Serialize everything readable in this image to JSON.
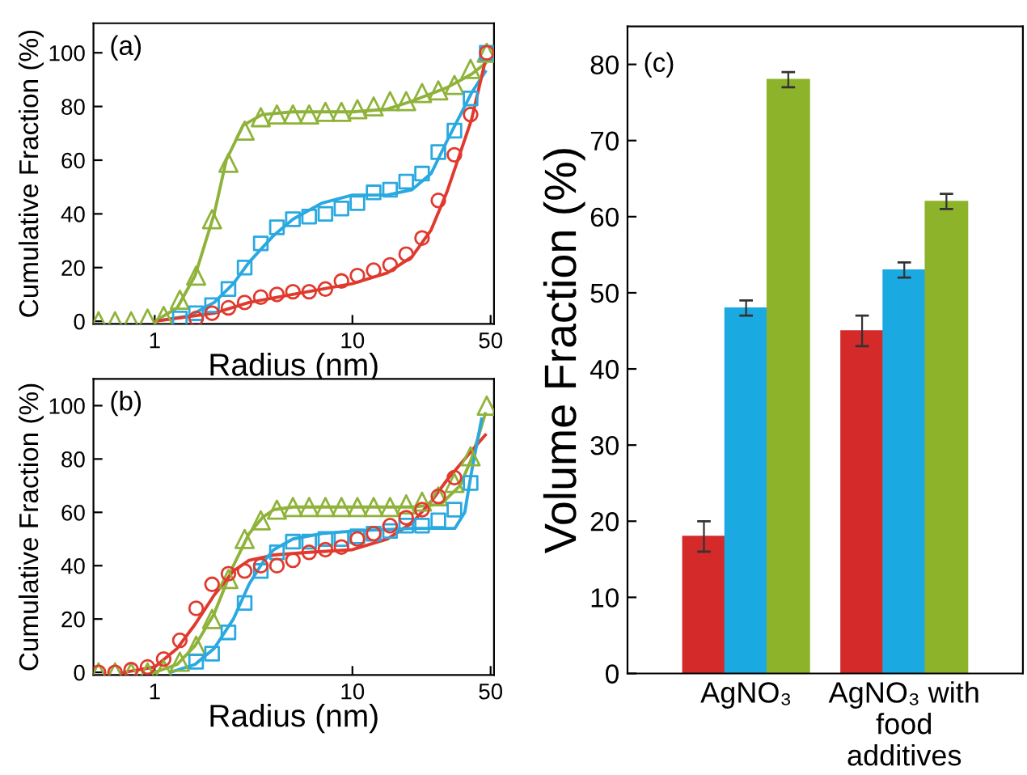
{
  "chart_data": [
    {
      "type": "scatter",
      "xlabel": "Radius (nm)",
      "ylabel": "Cumulative Fraction (%)",
      "annotations": [
        "(a)"
      ],
      "log": "x",
      "xlim": [
        0.49,
        52
      ],
      "xticks": [
        1,
        10,
        50
      ],
      "ylim": [
        -1,
        111
      ],
      "yticks": [
        0,
        20,
        40,
        60,
        80,
        100
      ],
      "grid": false,
      "series": [
        {
          "type": "scatter",
          "marker": "triangle",
          "color": "#8fb33a",
          "x": [
            0.52,
            0.63,
            0.76,
            0.92,
            1.11,
            1.34,
            1.62,
            1.95,
            2.36,
            2.85,
            3.44,
            4.15,
            5.0,
            6.04,
            7.3,
            8.8,
            10.6,
            12.8,
            15.5,
            18.7,
            22.5,
            27.2,
            32.8,
            39.6,
            47.8
          ],
          "values": [
            0,
            0,
            0,
            1,
            2,
            8,
            17,
            38,
            59,
            71,
            76,
            77,
            77,
            77,
            78,
            78,
            79,
            80,
            82,
            82,
            85,
            86,
            88,
            94,
            100
          ]
        },
        {
          "type": "scatter",
          "marker": "square",
          "color": "#2aa9e0",
          "x": [
            1.34,
            1.62,
            1.95,
            2.36,
            2.85,
            3.44,
            4.15,
            5.0,
            6.04,
            7.3,
            8.8,
            10.6,
            12.8,
            15.5,
            18.7,
            22.5,
            27.2,
            32.8,
            39.6,
            47.8
          ],
          "values": [
            1,
            3,
            6,
            12,
            20,
            29,
            35,
            38,
            39,
            40,
            42,
            44,
            48,
            49,
            52,
            55,
            63,
            71,
            83,
            100
          ]
        },
        {
          "type": "scatter",
          "marker": "circle",
          "color": "#e03a2e",
          "x": [
            1.62,
            1.95,
            2.36,
            2.85,
            3.44,
            4.15,
            5.0,
            6.04,
            7.3,
            8.8,
            10.6,
            12.8,
            15.5,
            18.7,
            22.5,
            27.2,
            32.8,
            39.6,
            47.8
          ],
          "values": [
            1,
            3,
            5,
            7,
            9,
            10,
            11,
            11,
            12,
            15,
            17,
            19,
            21,
            25,
            31,
            45,
            62,
            77,
            100
          ]
        },
        {
          "type": "line",
          "marker": "none",
          "color": "#8fb33a",
          "x": [
            1.0,
            1.3,
            1.6,
            2.0,
            2.3,
            2.8,
            3.5,
            5,
            10,
            15,
            20,
            30,
            40,
            47
          ],
          "values": [
            0,
            5,
            17,
            40,
            60,
            73,
            77,
            78,
            78,
            79,
            82,
            87,
            92,
            96
          ]
        },
        {
          "type": "line",
          "marker": "none",
          "color": "#2aa9e0",
          "x": [
            1.0,
            1.5,
            2,
            2.5,
            3,
            4,
            5,
            7,
            10,
            15,
            20,
            25,
            30,
            40,
            47
          ],
          "values": [
            0,
            2,
            7,
            14,
            22,
            32,
            38,
            44,
            47,
            47,
            49,
            55,
            67,
            85,
            93
          ]
        },
        {
          "type": "line",
          "marker": "none",
          "color": "#e03a2e",
          "x": [
            1.0,
            2,
            3,
            5,
            10,
            15,
            20,
            25,
            30,
            40,
            47
          ],
          "values": [
            0,
            3,
            7,
            10,
            14,
            18,
            24,
            34,
            48,
            75,
            97
          ]
        }
      ]
    },
    {
      "type": "scatter",
      "xlabel": "Radius (nm)",
      "ylabel": "Cumulative Fraction (%)",
      "annotations": [
        "(b)"
      ],
      "log": "x",
      "xlim": [
        0.49,
        52
      ],
      "xticks": [
        1,
        10,
        50
      ],
      "ylim": [
        -1,
        110
      ],
      "yticks": [
        0,
        20,
        40,
        60,
        80,
        100
      ],
      "grid": false,
      "series": [
        {
          "type": "scatter",
          "marker": "triangle",
          "color": "#8fb33a",
          "x": [
            0.52,
            0.63,
            0.76,
            0.92,
            1.11,
            1.34,
            1.62,
            1.95,
            2.36,
            2.85,
            3.44,
            4.15,
            5.0,
            6.04,
            7.3,
            8.8,
            10.6,
            12.8,
            15.5,
            18.7,
            22.5,
            27.2,
            32.8,
            39.6,
            47.8
          ],
          "values": [
            0,
            0,
            0,
            0,
            1,
            4,
            10,
            20,
            35,
            50,
            57,
            61,
            62,
            62,
            62,
            62,
            62,
            62,
            62,
            63,
            64,
            66,
            71,
            81,
            100
          ]
        },
        {
          "type": "scatter",
          "marker": "square",
          "color": "#2aa9e0",
          "x": [
            1.62,
            1.95,
            2.36,
            2.85,
            3.44,
            4.15,
            5.0,
            6.04,
            7.3,
            8.8,
            10.6,
            12.8,
            15.5,
            18.7,
            22.5,
            27.2,
            32.8,
            39.6
          ],
          "values": [
            4,
            7,
            15,
            26,
            38,
            45,
            49,
            49,
            50,
            50,
            51,
            52,
            53,
            55,
            55,
            57,
            61,
            71
          ]
        },
        {
          "type": "scatter",
          "marker": "circle",
          "color": "#e03a2e",
          "x": [
            0.52,
            0.63,
            0.76,
            0.92,
            1.11,
            1.34,
            1.62,
            1.95,
            2.36,
            2.85,
            3.44,
            4.15,
            5.0,
            6.04,
            7.3,
            8.8,
            10.6,
            12.8,
            15.5,
            18.7,
            22.5,
            27.2,
            32.8
          ],
          "values": [
            0,
            0,
            1,
            2,
            5,
            12,
            24,
            33,
            37,
            38,
            40,
            40,
            42,
            45,
            46,
            47,
            50,
            52,
            55,
            58,
            61,
            66,
            73
          ]
        },
        {
          "type": "line",
          "marker": "none",
          "color": "#8fb33a",
          "x": [
            1.0,
            1.3,
            1.6,
            2,
            2.5,
            3,
            3.5,
            4,
            5,
            10,
            20,
            28,
            35,
            40,
            47
          ],
          "values": [
            0,
            3,
            10,
            22,
            40,
            52,
            58,
            61,
            62,
            62,
            62,
            63,
            70,
            80,
            97
          ]
        },
        {
          "type": "line",
          "marker": "none",
          "color": "#e03a2e",
          "x": [
            0.7,
            1,
            1.3,
            1.6,
            2,
            2.5,
            3,
            4,
            6,
            10,
            15,
            20,
            25,
            30,
            40,
            47
          ],
          "values": [
            0,
            2,
            9,
            18,
            29,
            38,
            42,
            44,
            45,
            46,
            50,
            56,
            64,
            72,
            83,
            89
          ]
        },
        {
          "type": "line",
          "marker": "none",
          "color": "#2aa9e0",
          "x": [
            1.2,
            1.6,
            2,
            2.5,
            3,
            3.5,
            4,
            5,
            7,
            10,
            20,
            33,
            37,
            40,
            45
          ],
          "values": [
            0,
            3,
            9,
            20,
            33,
            41,
            46,
            50,
            52,
            53,
            54,
            54,
            60,
            75,
            95
          ]
        }
      ]
    },
    {
      "type": "bar",
      "ylabel": "Volume Fraction (%)",
      "annotations": [
        "(c)"
      ],
      "categories": [
        "AgNO₃",
        "AgNO₃ with\nfood\nadditives"
      ],
      "ylim": [
        0,
        85
      ],
      "yticks": [
        0,
        10,
        20,
        30,
        40,
        50,
        60,
        70,
        80
      ],
      "grid": false,
      "series": [
        {
          "color": "#d42a2a",
          "values": [
            18,
            45
          ],
          "errors": [
            2,
            2
          ]
        },
        {
          "color": "#1ba9e1",
          "values": [
            48,
            53
          ],
          "errors": [
            1,
            1
          ]
        },
        {
          "color": "#8db32a",
          "values": [
            78,
            62
          ],
          "errors": [
            1,
            1
          ]
        }
      ]
    }
  ]
}
